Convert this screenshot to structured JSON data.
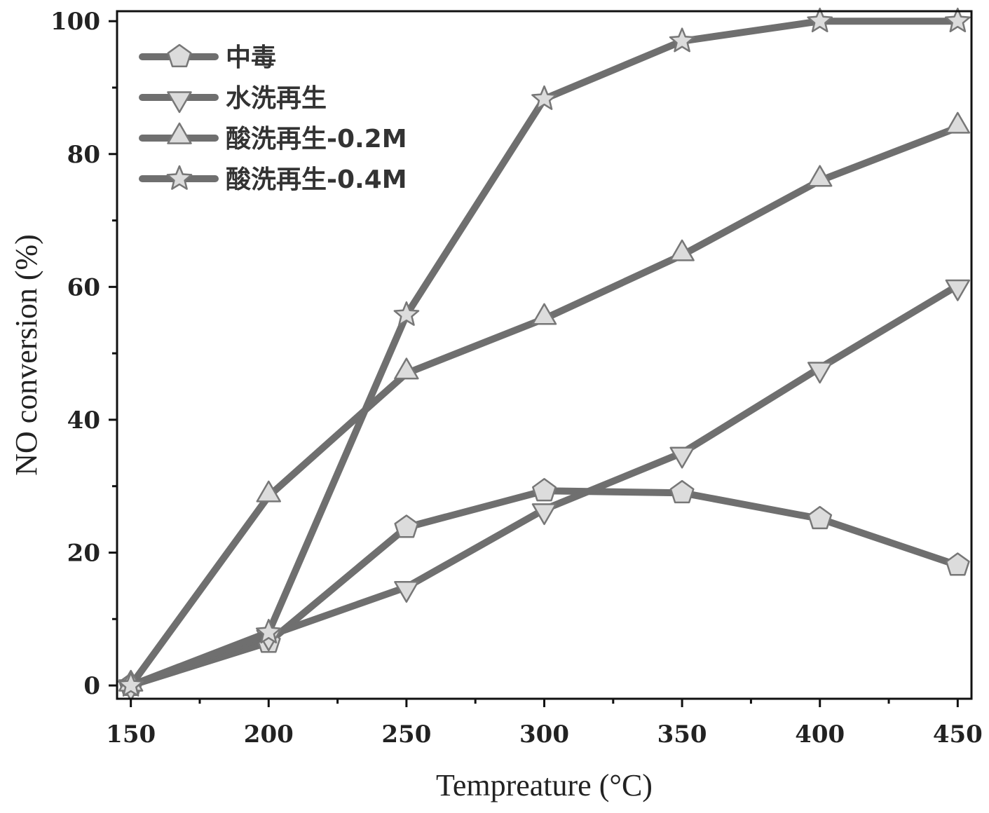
{
  "chart_data": {
    "type": "line",
    "xlabel": "Tempreature (°C)",
    "ylabel": "NO conversion (%)",
    "xlim": [
      145,
      455
    ],
    "ylim": [
      -2,
      101.5
    ],
    "x": [
      150,
      200,
      250,
      300,
      350,
      400,
      450
    ],
    "xticks": [
      "150",
      "200",
      "250",
      "300",
      "350",
      "400",
      "450"
    ],
    "yticks": [
      "0",
      "20",
      "40",
      "60",
      "80",
      "100"
    ],
    "xtick_values": [
      150,
      200,
      250,
      300,
      350,
      400,
      450
    ],
    "ytick_values": [
      0,
      20,
      40,
      60,
      80,
      100
    ],
    "legend_position": "top-left",
    "grid": false,
    "series": [
      {
        "name": "中毒",
        "marker": "pentagon",
        "values": [
          0,
          6.5,
          23.8,
          29.3,
          29.0,
          25.1,
          18.1
        ]
      },
      {
        "name": "水洗再生",
        "marker": "triangle-down",
        "values": [
          0,
          7.5,
          14.8,
          26.5,
          35.0,
          47.8,
          60.2
        ]
      },
      {
        "name": "酸洗再生-0.2M",
        "marker": "triangle-up",
        "values": [
          0,
          28.5,
          47.0,
          55.2,
          64.8,
          76.0,
          84.0
        ]
      },
      {
        "name": "酸洗再生-0.4M",
        "marker": "star",
        "values": [
          0,
          8.0,
          55.8,
          88.3,
          97.0,
          100.0,
          100.0
        ]
      }
    ],
    "colors": {
      "line": "#6f6f6f",
      "marker_fill": "#dcdcdc",
      "marker_stroke": "#777777",
      "axis": "#111111"
    }
  }
}
